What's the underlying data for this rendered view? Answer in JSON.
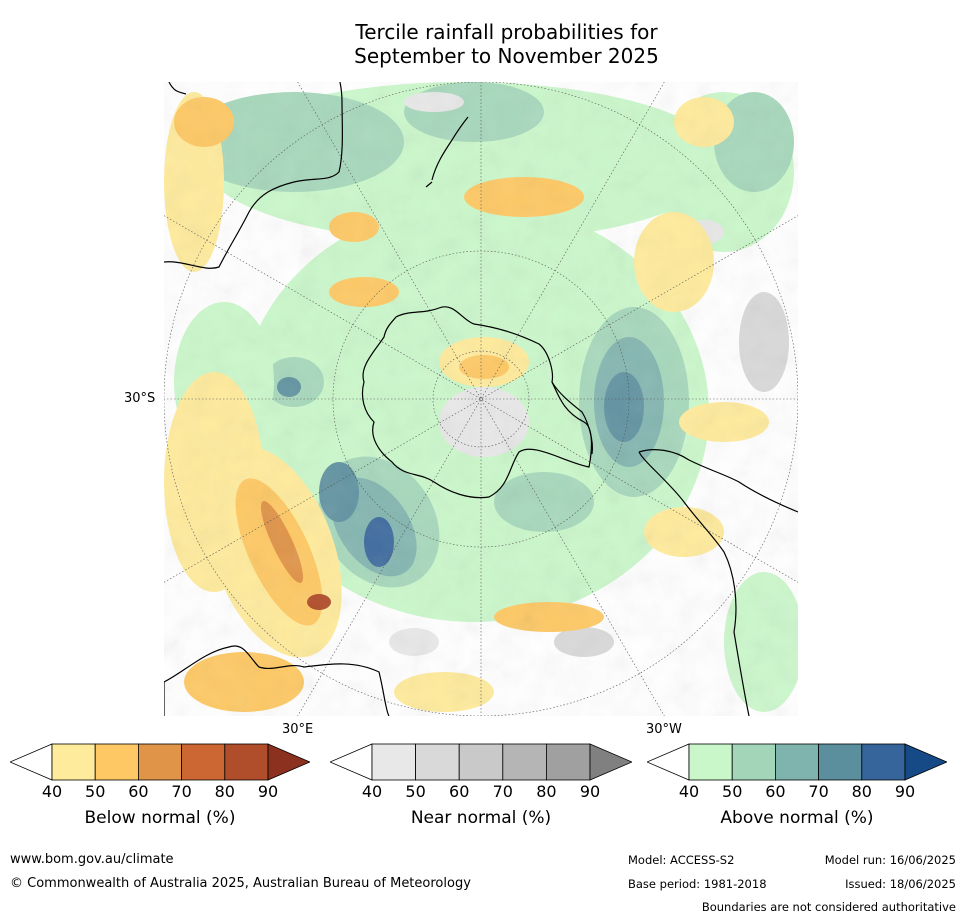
{
  "title": {
    "line1": "Tercile rainfall probabilities for",
    "line2": "September to November 2025"
  },
  "map": {
    "projection": "south-polar-stereographic",
    "lat_label_west": "30°S",
    "lon_label_left": "30°E",
    "lon_label_right": "30°W"
  },
  "colorbars": [
    {
      "title": "Below normal (%)",
      "ticks": [
        "40",
        "50",
        "60",
        "70",
        "80",
        "90"
      ],
      "colors": [
        "#ffffff",
        "#ffeb9c",
        "#fec965",
        "#e09448",
        "#cc6633",
        "#b04d2a",
        "#8c3120"
      ]
    },
    {
      "title": "Near normal (%)",
      "ticks": [
        "40",
        "50",
        "60",
        "70",
        "80",
        "90"
      ],
      "colors": [
        "#ffffff",
        "#e8e8e8",
        "#d9d9d9",
        "#c9c9c9",
        "#b5b5b5",
        "#a0a0a0",
        "#808080"
      ]
    },
    {
      "title": "Above normal (%)",
      "ticks": [
        "40",
        "50",
        "60",
        "70",
        "80",
        "90"
      ],
      "colors": [
        "#ffffff",
        "#c9f7c9",
        "#a3d6b9",
        "#7fb3ad",
        "#5b8f9e",
        "#35659a",
        "#154a86"
      ]
    }
  ],
  "footer": {
    "website": "www.bom.gov.au/climate",
    "copyright": "© Commonwealth of Australia 2025, Australian Bureau of Meteorology",
    "model": "Model: ACCESS-S2",
    "base_period": "Base period: 1981-2018",
    "model_run": "Model run: 16/06/2025",
    "issued": "Issued: 18/06/2025",
    "disclaimer": "Boundaries are not considered authoritative"
  }
}
